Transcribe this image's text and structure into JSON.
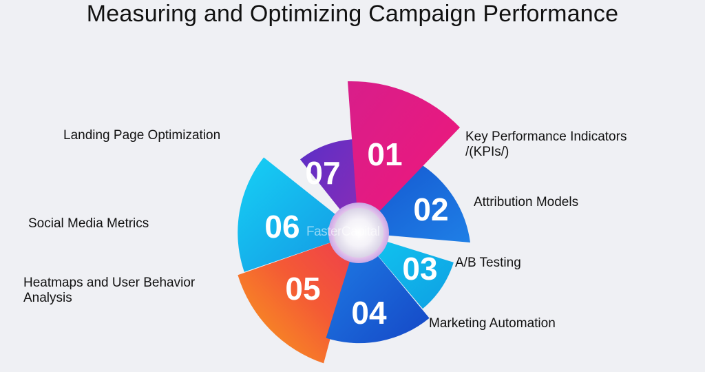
{
  "title": "Measuring and Optimizing Campaign Performance",
  "watermark": "FasterCapital",
  "segments": [
    {
      "num": "01",
      "label": "Key Performance Indicators /(KPIs/)",
      "color": "#e0167e"
    },
    {
      "num": "02",
      "label": "Attribution Models",
      "color": "#1565d8"
    },
    {
      "num": "03",
      "label": "A/B Testing",
      "color": "#12b8ec"
    },
    {
      "num": "04",
      "label": "Marketing Automation",
      "color": "#1a5fd1"
    },
    {
      "num": "05",
      "label": "Heatmaps and User Behavior Analysis",
      "color": "#f4483b"
    },
    {
      "num": "06",
      "label": "Social Media Metrics",
      "color": "#16b6ea"
    },
    {
      "num": "07",
      "label": "Landing Page Optimization",
      "color": "#6a2fc0"
    }
  ]
}
